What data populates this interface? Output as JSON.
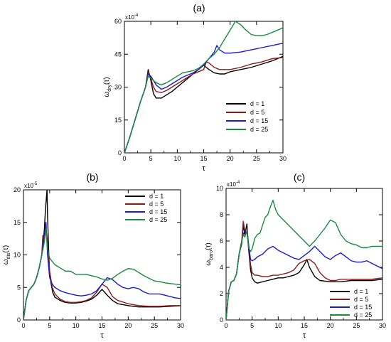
{
  "chart_data": [
    {
      "type": "line",
      "panel_label": "(a)",
      "xlabel": "τ",
      "ylabel": {
        "base": "ω",
        "sub": "dry",
        "suffix": "(τ)"
      },
      "y_multiplier": {
        "base": "x10",
        "exp": "-4"
      },
      "xlim": [
        0,
        30
      ],
      "ylim": [
        0,
        60
      ],
      "xticks": [
        0,
        5,
        10,
        15,
        20,
        25,
        30
      ],
      "yticks": [
        0,
        15,
        30,
        45,
        60
      ],
      "legend_position": "lower-right",
      "series": [
        {
          "name": "d = 1",
          "color": "#000000",
          "x": [
            0,
            1,
            2,
            3,
            4,
            4.5,
            5,
            5.5,
            6,
            7,
            8,
            9,
            10,
            11,
            12,
            13,
            14,
            15,
            16,
            17,
            18,
            19,
            20,
            22,
            24,
            26,
            28,
            30
          ],
          "y": [
            0,
            7,
            15,
            23,
            30,
            38,
            33,
            27,
            25,
            25,
            26.5,
            28,
            30,
            32,
            34,
            36,
            38,
            40,
            38,
            36.5,
            36,
            36,
            37,
            38,
            39,
            40.5,
            42,
            44
          ]
        },
        {
          "name": "d = 5",
          "color": "#8b1a1a",
          "x": [
            0,
            1,
            2,
            3,
            4,
            4.5,
            5,
            5.5,
            6,
            7,
            8,
            9,
            10,
            11,
            12,
            13,
            14,
            15,
            15.5,
            16,
            17,
            18,
            19,
            20,
            22,
            24,
            26,
            28,
            30
          ],
          "y": [
            0,
            7,
            15,
            23,
            30,
            37,
            34,
            30,
            28,
            27.5,
            28.5,
            30,
            31.5,
            33,
            34.5,
            36,
            37,
            38,
            41.5,
            41,
            39,
            38,
            38,
            38,
            39,
            40.5,
            41.5,
            43,
            43.5
          ]
        },
        {
          "name": "d = 15",
          "color": "#1a1ad0",
          "x": [
            0,
            1,
            2,
            3,
            4,
            4.5,
            5,
            5.5,
            6,
            7,
            8,
            9,
            10,
            11,
            12,
            13,
            14,
            15,
            16,
            17,
            17.5,
            18,
            19,
            20,
            22,
            24,
            26,
            28,
            30
          ],
          "y": [
            0,
            7,
            15,
            23,
            30,
            36,
            35,
            33,
            31,
            29,
            30,
            31.5,
            33,
            34.5,
            35.5,
            36.5,
            38,
            40,
            43,
            46,
            49,
            47,
            45.5,
            45.5,
            46,
            47,
            48,
            49,
            50
          ]
        },
        {
          "name": "d = 25",
          "color": "#1a8a3c",
          "x": [
            0,
            1,
            2,
            3,
            4,
            4.5,
            5,
            5.5,
            6,
            7,
            8,
            9,
            10,
            11,
            12,
            13,
            14,
            15,
            16,
            17,
            18,
            19,
            20,
            21,
            22,
            23,
            24,
            25,
            26,
            27,
            28,
            29,
            30
          ],
          "y": [
            0,
            7,
            15,
            23,
            30,
            35,
            34,
            33,
            32,
            31,
            32,
            33.5,
            35,
            36.5,
            37,
            37.5,
            38.5,
            40.5,
            43,
            45,
            48,
            52,
            56,
            60,
            58.5,
            56,
            54,
            53.5,
            53.5,
            54,
            55,
            56,
            57
          ]
        }
      ]
    },
    {
      "type": "line",
      "panel_label": "(b)",
      "xlabel": "τ",
      "ylabel": {
        "base": "ω",
        "sub": "dis",
        "suffix": "(τ)"
      },
      "y_multiplier": {
        "base": "x10",
        "exp": "-5"
      },
      "xlim": [
        0,
        30
      ],
      "ylim": [
        0,
        20
      ],
      "xticks": [
        0,
        5,
        10,
        15,
        20,
        25,
        30
      ],
      "yticks": [
        0,
        5,
        10,
        15,
        20
      ],
      "legend_position": "top-right",
      "series": [
        {
          "name": "d = 1",
          "color": "#000000",
          "x": [
            0,
            0.5,
            1,
            1.5,
            2,
            2.5,
            3,
            3.5,
            3.8,
            4.0,
            4.2,
            4.4,
            4.5,
            4.6,
            4.8,
            5,
            5.3,
            5.6,
            6,
            7,
            8,
            9,
            10,
            11,
            12,
            13,
            14,
            15,
            16,
            17,
            18,
            20,
            22,
            24,
            26,
            28,
            30
          ],
          "y": [
            0,
            3,
            4.5,
            5,
            5.5,
            6.5,
            8,
            10,
            12,
            14,
            17,
            19,
            20,
            16,
            11,
            7,
            5.5,
            4.2,
            3.5,
            3,
            2.7,
            2.6,
            2.6,
            2.7,
            2.9,
            3.2,
            3.8,
            4.7,
            3.8,
            3,
            2.5,
            2.2,
            2,
            2,
            2,
            2.1,
            2.2
          ]
        },
        {
          "name": "d = 5",
          "color": "#8b1a1a",
          "x": [
            0,
            0.5,
            1,
            1.5,
            2,
            2.5,
            3,
            3.5,
            3.7,
            4.0,
            4.3,
            4.6,
            5,
            5.5,
            6,
            7,
            8,
            9,
            10,
            11,
            12,
            13,
            14,
            15,
            16,
            17,
            18,
            20,
            22,
            24,
            26,
            28,
            30
          ],
          "y": [
            0,
            3,
            4.5,
            5,
            5.5,
            6.5,
            8,
            10,
            13,
            12.5,
            14,
            12,
            7.5,
            5,
            4,
            3.2,
            2.8,
            2.7,
            2.7,
            2.8,
            3,
            3.4,
            4.3,
            5.5,
            5,
            3.6,
            3,
            2.5,
            2.2,
            2.1,
            2.1,
            2.2,
            2.2
          ]
        },
        {
          "name": "d = 15",
          "color": "#1a1ad0",
          "x": [
            0,
            0.5,
            1,
            1.5,
            2,
            2.5,
            3,
            3.5,
            4.0,
            4.3,
            4.6,
            5,
            5.5,
            6,
            7,
            8,
            9,
            10,
            11,
            12,
            13,
            14,
            15,
            16,
            17,
            18,
            19,
            20,
            21,
            22,
            23,
            24,
            25,
            26,
            27,
            28,
            29,
            30
          ],
          "y": [
            0,
            3,
            4.5,
            5,
            5.5,
            6.5,
            8,
            10,
            13,
            15,
            10,
            6.5,
            5.5,
            5,
            4.5,
            4.2,
            4,
            3.8,
            3.7,
            3.8,
            4,
            4.5,
            5.5,
            6.5,
            6.2,
            5.5,
            5,
            4.8,
            5,
            4.8,
            4.3,
            4,
            4,
            4,
            3.8,
            3.6,
            3.4,
            3.3
          ]
        },
        {
          "name": "d = 25",
          "color": "#1a8a3c",
          "x": [
            0,
            0.5,
            1,
            1.5,
            2,
            2.5,
            3,
            3.5,
            4.0,
            4.3,
            4.6,
            5,
            5.5,
            6,
            7,
            8,
            9,
            10,
            11,
            12,
            13,
            14,
            15,
            16,
            17,
            18,
            19,
            20,
            21,
            22,
            23,
            24,
            25,
            26,
            27,
            28,
            29,
            30
          ],
          "y": [
            0,
            3,
            4.5,
            5,
            5.5,
            6.5,
            8,
            10,
            12,
            14,
            11,
            9.5,
            9,
            8.5,
            8,
            7.5,
            7.5,
            7,
            7,
            7,
            6.8,
            6.6,
            6.3,
            6.1,
            6.4,
            7,
            7.5,
            7.9,
            7.8,
            7.3,
            6.8,
            6.4,
            6,
            5.9,
            5.7,
            5.6,
            5.5,
            5.4
          ]
        }
      ]
    },
    {
      "type": "line",
      "panel_label": "(c)",
      "xlabel": "τ",
      "ylabel": {
        "base": "ω",
        "sub": "baro",
        "suffix": "(τ)"
      },
      "y_multiplier": {
        "base": "x10",
        "exp": "-4"
      },
      "xlim": [
        0,
        30
      ],
      "ylim": [
        0,
        10
      ],
      "xticks": [
        0,
        5,
        10,
        15,
        20,
        25,
        30
      ],
      "yticks": [
        0,
        2,
        4,
        6,
        8,
        10
      ],
      "legend_position": "bottom-right",
      "series": [
        {
          "name": "d = 1",
          "color": "#000000",
          "x": [
            0,
            0.5,
            1,
            1.5,
            2,
            2.5,
            3,
            3.3,
            3.6,
            4,
            4.3,
            4.7,
            5,
            5.5,
            6,
            7,
            8,
            9,
            10,
            11,
            12,
            13,
            14,
            15,
            15.5,
            16,
            17,
            18,
            20,
            22,
            24,
            26,
            28,
            30
          ],
          "y": [
            0,
            2.2,
            2.9,
            3,
            3.5,
            5,
            5.8,
            7.2,
            6.5,
            7.3,
            5.5,
            3.8,
            3.2,
            2.9,
            2.8,
            2.9,
            3,
            3.1,
            3.2,
            3.2,
            3.3,
            3.4,
            3.6,
            4.2,
            4.6,
            4,
            3.3,
            3,
            2.9,
            2.9,
            3,
            3,
            3,
            3.1
          ]
        },
        {
          "name": "d = 5",
          "color": "#8b1a1a",
          "x": [
            0,
            0.5,
            1,
            1.5,
            2,
            2.5,
            3,
            3.3,
            3.6,
            4,
            4.3,
            4.7,
            5,
            5.5,
            6,
            7,
            8,
            9,
            10,
            11,
            12,
            13,
            14,
            15,
            16,
            17,
            18,
            19,
            20,
            21,
            22,
            24,
            26,
            28,
            30
          ],
          "y": [
            0,
            2.2,
            2.9,
            3,
            3.5,
            5,
            6,
            7.5,
            6.8,
            7,
            5.8,
            4.2,
            3.6,
            3.4,
            3.4,
            3.3,
            3.3,
            3.4,
            3.4,
            3.5,
            3.6,
            3.8,
            4.3,
            4.5,
            4.6,
            4.3,
            3.6,
            3.2,
            3,
            3,
            3.1,
            3.1,
            3.1,
            3.1,
            3.2
          ]
        },
        {
          "name": "d = 15",
          "color": "#1a1ad0",
          "x": [
            0,
            0.5,
            1,
            1.5,
            2,
            2.5,
            3,
            3.3,
            3.6,
            4,
            4.3,
            4.7,
            5,
            5.5,
            6,
            7,
            8,
            9,
            10,
            11,
            12,
            13,
            14,
            15,
            16,
            17,
            18,
            19,
            20,
            21,
            22,
            23,
            24,
            25,
            26,
            27,
            28,
            29,
            30
          ],
          "y": [
            0,
            2.2,
            2.9,
            3,
            3.5,
            5,
            6,
            6.5,
            6.8,
            6.6,
            5.8,
            4.6,
            4.5,
            4.6,
            4.8,
            5,
            5.4,
            5.6,
            5.3,
            5.1,
            4.9,
            4.7,
            4.6,
            4.9,
            5.2,
            5.6,
            5.2,
            4.8,
            4.6,
            4.9,
            5.1,
            4.8,
            4.5,
            4.4,
            4.4,
            4.5,
            4.3,
            4.1,
            3.9
          ]
        },
        {
          "name": "d = 25",
          "color": "#1a8a3c",
          "x": [
            0,
            0.5,
            1,
            1.5,
            2,
            2.5,
            3,
            3.3,
            3.6,
            4,
            4.3,
            4.7,
            5,
            5.5,
            6,
            6.5,
            7,
            7.5,
            8,
            8.5,
            9,
            9.5,
            10,
            11,
            12,
            13,
            14,
            15,
            16,
            17,
            18,
            19,
            20,
            21,
            22,
            23,
            24,
            25,
            26,
            27,
            28,
            29,
            30
          ],
          "y": [
            0,
            2.2,
            2.9,
            3,
            3.5,
            5,
            6,
            6.5,
            6.3,
            6.8,
            5.5,
            5.2,
            5.4,
            6.2,
            6.5,
            6.6,
            7.2,
            7.8,
            8,
            8.6,
            9.1,
            8.4,
            8,
            7.6,
            7.2,
            6.8,
            6.4,
            6,
            5.6,
            6,
            6.5,
            7,
            7.6,
            7.4,
            6.5,
            6,
            5.8,
            5.7,
            5.5,
            5.5,
            5.6,
            5.6,
            5.6
          ]
        }
      ]
    }
  ]
}
